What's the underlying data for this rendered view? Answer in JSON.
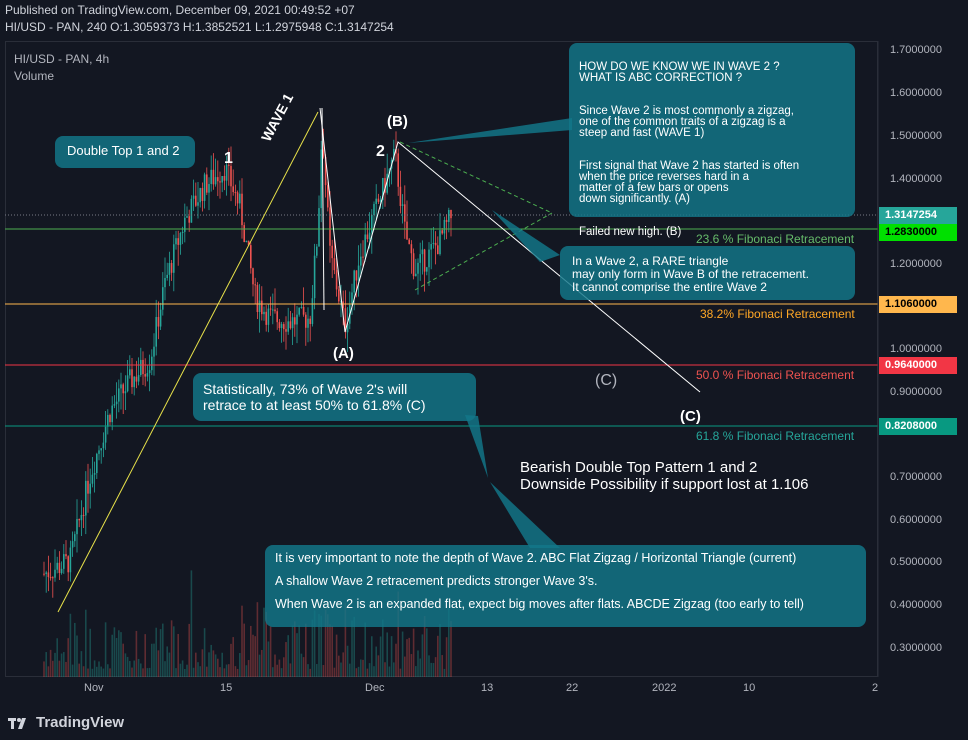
{
  "header": {
    "published": "Published on TradingView.com, December 09, 2021 00:49:52 +07",
    "symbol": "HI/USD - PAN, 240",
    "ohlc": "O:1.3059373 H:1.3852521 L:1.2975948 C:1.3147254"
  },
  "legend": {
    "series": "HI/USD - PAN, 4h",
    "volume": "Volume"
  },
  "price_axis": [
    "1.7000000",
    "1.6000000",
    "1.5000000",
    "1.4000000",
    "1.3000000",
    "1.2000000",
    "1.1000000",
    "1.0000000",
    "0.9000000",
    "0.8000000",
    "0.7000000",
    "0.6000000",
    "0.5000000",
    "0.4000000",
    "0.3000000"
  ],
  "time_axis": [
    "Nov",
    "15",
    "Dec",
    "13",
    "22",
    "2022",
    "10",
    "2"
  ],
  "price_labels": {
    "last": "1.3147254",
    "fib236": "1.2830000",
    "fib382": "1.1060000",
    "fib500": "0.9640000",
    "fib618": "0.8208000"
  },
  "fib_labels": {
    "f236": "23.6 % Fibonaci Retracement",
    "f382": "38.2% Fibonaci Retracement",
    "f500": "50.0 % Fibonaci Retracement",
    "f618": "61.8 % Fibonaci Retracement"
  },
  "colors": {
    "up": "#26a69a",
    "down": "#ef5350",
    "fib236": "#4caf50",
    "fib382": "#ffb74d",
    "fib500": "#f23645",
    "fib618": "#089981"
  },
  "annotations": {
    "double_top": "Double Top 1 and 2",
    "wave2_title": "HOW DO WE KNOW WE IN WAVE 2 ?\nWHAT IS ABC CORRECTION ?",
    "wave2_p1": "Since Wave 2 is most commonly a zigzag,\none of the common traits of a zigzag is a\nsteep and fast (WAVE 1)",
    "wave2_p2": "First signal that Wave 2 has started is often\nwhen the price reverses hard in a\nmatter of a few bars or opens\ndown significantly. (A)",
    "wave2_p3": "Failed new high. (B)",
    "triangle": "In a Wave 2, a RARE triangle\nmay only form in Wave B of the retracement.\nIt cannot comprise the entire Wave 2",
    "stat": "Statistically, 73% of Wave 2's will\nretrace to at least 50% to 61.8% (C)",
    "bearish": "Bearish Double Top Pattern 1 and 2\nDownside Possibility if support lost at 1.106",
    "depth1": "It is very important to note the depth of Wave 2. ABC Flat Zigzag / Horizontal Triangle (current)",
    "depth2": "A shallow Wave 2 retracement predicts stronger Wave 3's.",
    "depth3": "When Wave 2 is an expanded flat, expect big moves after flats. ABCDE Zigzag (too early to tell)"
  },
  "wave_labels": {
    "one": "1",
    "two": "2",
    "wave1": "WAVE 1",
    "A": "(A)",
    "B": "(B)",
    "C1": "(C)",
    "C2": "(C)"
  },
  "footer": {
    "brand": "TradingView"
  }
}
